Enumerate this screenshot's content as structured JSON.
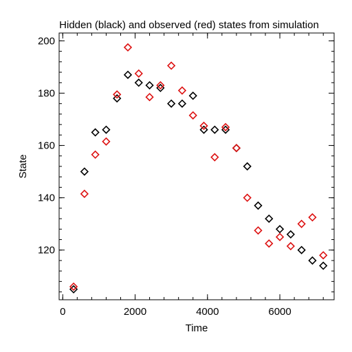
{
  "chart_data": {
    "type": "scatter",
    "title": "Hidden (black) and observed (red) states from simulation",
    "xlabel": "Time",
    "ylabel": "State",
    "xlim": [
      -100,
      7500
    ],
    "ylim": [
      101,
      203
    ],
    "xticks": [
      0,
      2000,
      4000,
      6000
    ],
    "yticks": [
      120,
      140,
      160,
      180,
      200
    ],
    "x_minor_step": 400,
    "y_minor_step": 4,
    "grid": false,
    "marker": "diamond-open",
    "colors": {
      "hidden": "#000000",
      "observed": "#dd1111"
    },
    "series": [
      {
        "color_key": "hidden",
        "x": [
          300,
          600,
          900,
          1200,
          1500,
          1800,
          2100,
          2400,
          2700,
          3000,
          3300,
          3600,
          3900,
          4200,
          4500,
          4800,
          5100,
          5400,
          5700,
          6000,
          6300,
          6600,
          6900,
          7200
        ],
        "y": [
          105,
          150,
          165,
          166,
          178,
          187,
          184,
          183,
          182,
          176,
          176,
          179,
          166,
          166,
          166,
          159,
          152,
          137,
          132,
          128,
          126,
          120,
          116,
          114
        ]
      },
      {
        "color_key": "observed",
        "x": [
          300,
          600,
          900,
          1200,
          1500,
          1800,
          2100,
          2400,
          2700,
          3000,
          3300,
          3600,
          3900,
          4200,
          4500,
          4800,
          5100,
          5400,
          5700,
          6000,
          6300,
          6600,
          6900,
          7200
        ],
        "y": [
          106,
          141.5,
          156.5,
          161.5,
          179.5,
          197.5,
          187.5,
          178.5,
          183,
          190.5,
          181,
          171.5,
          167.5,
          155.5,
          167,
          159,
          140,
          127.5,
          122.5,
          125,
          121.5,
          130,
          132.5,
          118
        ]
      }
    ]
  }
}
